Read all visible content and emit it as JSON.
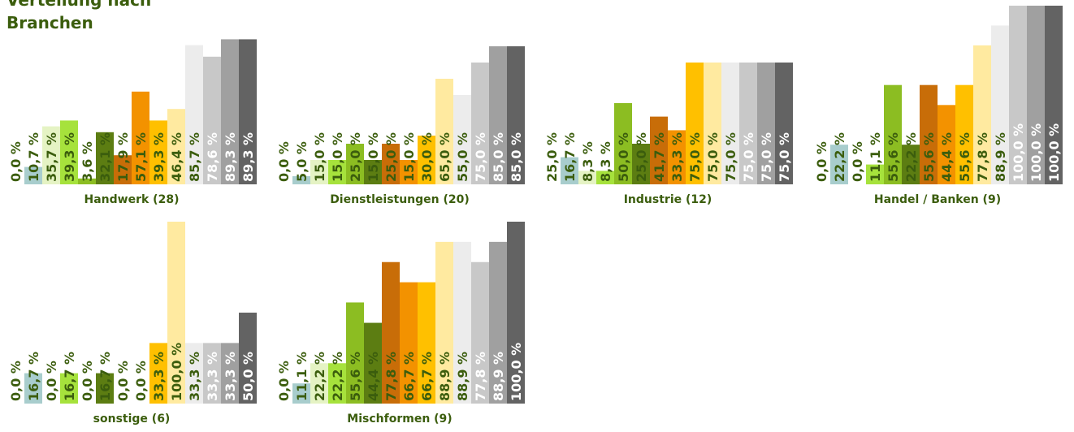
{
  "title_lines": [
    "Verteilung nach",
    "Branchen"
  ],
  "palette": [
    "#a8cdcd",
    "#e5f3c4",
    "#a6e23c",
    "#8cbd22",
    "#5c7d12",
    "#c86d08",
    "#f39200",
    "#ffc000",
    "#ffeaa0",
    "#ececec",
    "#c8c8c8",
    "#a0a0a0",
    "#636363"
  ],
  "label_colors": [
    "#3b5d0d",
    "#3b5d0d",
    "#3b5d0d",
    "#3b5d0d",
    "#3b5d0d",
    "#3b5d0d",
    "#3b5d0d",
    "#3b5d0d",
    "#3b5d0d",
    "#3b5d0d",
    "#ffffff",
    "#ffffff",
    "#ffffff"
  ],
  "chart_data": [
    {
      "type": "bar",
      "title": "Handwerk (28)",
      "values": [
        0.0,
        10.7,
        35.7,
        39.3,
        3.6,
        32.1,
        17.9,
        57.1,
        39.3,
        46.4,
        85.7,
        78.6,
        89.3,
        89.3
      ],
      "labels": [
        "0,0 %",
        "10,7 %",
        "35,7 %",
        "39,3 %",
        "3,6 %",
        "32,1 %",
        "17,9 %",
        "57,1 %",
        "39,3 %",
        "46,4 %",
        "85,7 %",
        "78,6 %",
        "89,3 %",
        "89,3 %"
      ],
      "ylim": [
        0,
        100
      ]
    },
    {
      "type": "bar",
      "title": "Dienstleistungen (20)",
      "values": [
        0.0,
        5.0,
        15.0,
        15.0,
        25.0,
        15.0,
        25.0,
        15.0,
        30.0,
        65.0,
        55.0,
        75.0,
        85.0,
        85.0
      ],
      "labels": [
        "0,0 %",
        "5,0 %",
        "15,0 %",
        "15,0 %",
        "25,0 %",
        "15,0 %",
        "25,0 %",
        "15,0 %",
        "30,0 %",
        "65,0 %",
        "55,0 %",
        "75,0 %",
        "85,0 %",
        "85,0 %"
      ],
      "ylim": [
        0,
        100
      ]
    },
    {
      "type": "bar",
      "title": "Industrie (12)",
      "values": [
        25.0,
        16.7,
        8.3,
        8.3,
        50.0,
        25.0,
        41.7,
        33.3,
        75.0,
        75.0,
        75.0,
        75.0,
        75.0,
        75.0
      ],
      "labels": [
        "25,0 %",
        "16,7 %",
        "8,3 %",
        "8,3 %",
        "50,0 %",
        "25,0 %",
        "41,7 %",
        "33,3 %",
        "75,0 %",
        "75,0 %",
        "75,0 %",
        "75,0 %",
        "75,0 %",
        "75,0 %"
      ],
      "ylim": [
        0,
        100
      ]
    },
    {
      "type": "bar",
      "title": "Handel / Banken (9)",
      "values": [
        0.0,
        22.2,
        0.0,
        11.1,
        55.6,
        22.2,
        55.6,
        44.4,
        55.6,
        77.8,
        88.9,
        100.0,
        100.0,
        100.0
      ],
      "labels": [
        "0,0 %",
        "22,2 %",
        "0,0 %",
        "11,1 %",
        "55,6 %",
        "22,2 %",
        "55,6 %",
        "44,4 %",
        "55,6 %",
        "77,8 %",
        "88,9 %",
        "100,0 %",
        "100,0 %",
        "100,0 %"
      ],
      "ylim": [
        0,
        100
      ]
    },
    {
      "type": "bar",
      "title": "sonstige (6)",
      "values": [
        0.0,
        16.7,
        0.0,
        16.7,
        0.0,
        16.7,
        0.0,
        0.0,
        33.3,
        100.0,
        33.3,
        33.3,
        33.3,
        50.0
      ],
      "labels": [
        "0,0 %",
        "16,7 %",
        "0,0 %",
        "16,7 %",
        "0,0 %",
        "16,7 %",
        "0,0 %",
        "0,0 %",
        "33,3 %",
        "100,0 %",
        "33,3 %",
        "33,3 %",
        "33,3 %",
        "50,0 %"
      ],
      "ylim": [
        0,
        100
      ]
    },
    {
      "type": "bar",
      "title": "Mischformen (9)",
      "values": [
        0.0,
        11.1,
        22.2,
        22.2,
        55.6,
        44.4,
        77.8,
        66.7,
        66.7,
        88.9,
        88.9,
        77.8,
        88.9,
        100.0
      ],
      "labels": [
        "0,0 %",
        "11,1 %",
        "22,2 %",
        "22,2 %",
        "55,6 %",
        "44,4 %",
        "77,8 %",
        "66,7 %",
        "66,7 %",
        "88,9 %",
        "88,9 %",
        "77,8 %",
        "88,9 %",
        "100,0 %"
      ],
      "ylim": [
        0,
        100
      ]
    }
  ]
}
